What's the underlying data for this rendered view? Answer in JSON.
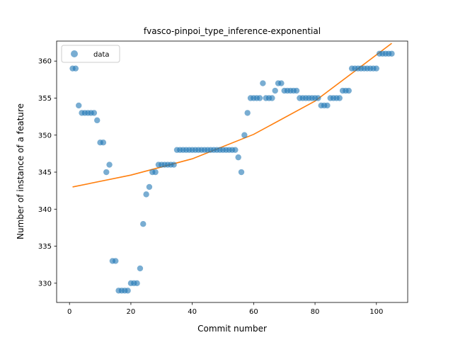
{
  "chart_data": {
    "type": "scatter",
    "title": "fvasco-pinpoi_type_inference-exponential",
    "xlabel": "Commit number",
    "ylabel": "Number of instance of a feature",
    "xlim": [
      -4.2,
      110.2
    ],
    "ylim": [
      327.4,
      362.7
    ],
    "xticks": [
      0,
      20,
      40,
      60,
      80,
      100
    ],
    "yticks": [
      330,
      335,
      340,
      345,
      350,
      355,
      360
    ],
    "legend": {
      "placement": "top-left",
      "entries": [
        "data"
      ]
    },
    "colors": {
      "data": "#1f77b4",
      "fit": "#ff7f0e"
    },
    "series": [
      {
        "name": "data",
        "kind": "scatter",
        "points": [
          [
            1,
            359
          ],
          [
            2,
            359
          ],
          [
            3,
            354
          ],
          [
            4,
            353
          ],
          [
            5,
            353
          ],
          [
            6,
            353
          ],
          [
            7,
            353
          ],
          [
            8,
            353
          ],
          [
            9,
            352
          ],
          [
            10,
            349
          ],
          [
            11,
            349
          ],
          [
            12,
            345
          ],
          [
            13,
            346
          ],
          [
            14,
            333
          ],
          [
            15,
            333
          ],
          [
            16,
            329
          ],
          [
            17,
            329
          ],
          [
            18,
            329
          ],
          [
            19,
            329
          ],
          [
            20,
            330
          ],
          [
            21,
            330
          ],
          [
            22,
            330
          ],
          [
            23,
            332
          ],
          [
            24,
            338
          ],
          [
            25,
            342
          ],
          [
            26,
            343
          ],
          [
            27,
            345
          ],
          [
            28,
            345
          ],
          [
            29,
            346
          ],
          [
            30,
            346
          ],
          [
            31,
            346
          ],
          [
            32,
            346
          ],
          [
            33,
            346
          ],
          [
            34,
            346
          ],
          [
            35,
            348
          ],
          [
            36,
            348
          ],
          [
            37,
            348
          ],
          [
            38,
            348
          ],
          [
            39,
            348
          ],
          [
            40,
            348
          ],
          [
            41,
            348
          ],
          [
            42,
            348
          ],
          [
            43,
            348
          ],
          [
            44,
            348
          ],
          [
            45,
            348
          ],
          [
            46,
            348
          ],
          [
            47,
            348
          ],
          [
            48,
            348
          ],
          [
            49,
            348
          ],
          [
            50,
            348
          ],
          [
            51,
            348
          ],
          [
            52,
            348
          ],
          [
            53,
            348
          ],
          [
            54,
            348
          ],
          [
            55,
            347
          ],
          [
            56,
            345
          ],
          [
            57,
            350
          ],
          [
            58,
            353
          ],
          [
            59,
            355
          ],
          [
            60,
            355
          ],
          [
            61,
            355
          ],
          [
            62,
            355
          ],
          [
            63,
            357
          ],
          [
            64,
            355
          ],
          [
            65,
            355
          ],
          [
            66,
            355
          ],
          [
            67,
            356
          ],
          [
            68,
            357
          ],
          [
            69,
            357
          ],
          [
            70,
            356
          ],
          [
            71,
            356
          ],
          [
            72,
            356
          ],
          [
            73,
            356
          ],
          [
            74,
            356
          ],
          [
            75,
            355
          ],
          [
            76,
            355
          ],
          [
            77,
            355
          ],
          [
            78,
            355
          ],
          [
            79,
            355
          ],
          [
            80,
            355
          ],
          [
            81,
            355
          ],
          [
            82,
            354
          ],
          [
            83,
            354
          ],
          [
            84,
            354
          ],
          [
            85,
            355
          ],
          [
            86,
            355
          ],
          [
            87,
            355
          ],
          [
            88,
            355
          ],
          [
            89,
            356
          ],
          [
            90,
            356
          ],
          [
            91,
            356
          ],
          [
            92,
            359
          ],
          [
            93,
            359
          ],
          [
            94,
            359
          ],
          [
            95,
            359
          ],
          [
            96,
            359
          ],
          [
            97,
            359
          ],
          [
            98,
            359
          ],
          [
            99,
            359
          ],
          [
            100,
            359
          ],
          [
            101,
            361
          ],
          [
            102,
            361
          ],
          [
            103,
            361
          ],
          [
            104,
            361
          ],
          [
            105,
            361
          ]
        ]
      },
      {
        "name": "",
        "kind": "line",
        "points": [
          [
            1,
            343
          ],
          [
            20,
            344.6
          ],
          [
            40,
            346.8
          ],
          [
            60,
            350.1
          ],
          [
            80,
            354.6
          ],
          [
            105,
            362.4
          ]
        ]
      }
    ]
  }
}
